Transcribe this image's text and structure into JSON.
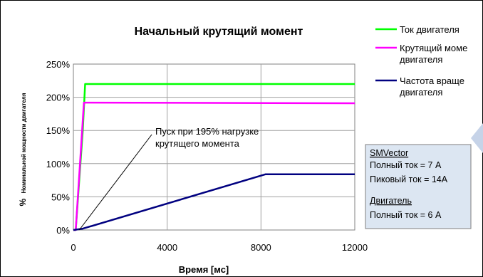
{
  "chart_data": {
    "type": "line",
    "title": "Начальный крутящий момент",
    "xlabel": "Время  [мс]",
    "ylabel_prefix": "%",
    "ylabel_rest": "Номинальной мощности двигателя",
    "xlim": [
      0,
      12000
    ],
    "ylim": [
      0,
      250
    ],
    "x_ticks": [
      0,
      4000,
      8000,
      12000
    ],
    "y_ticks": [
      0,
      50,
      100,
      150,
      200,
      250
    ],
    "x_tick_labels": [
      "0",
      "4000",
      "8000",
      "12000"
    ],
    "y_tick_labels": [
      "0%",
      "50%",
      "100%",
      "150%",
      "200%",
      "250%"
    ],
    "grid": true,
    "legend_position": "right",
    "series": [
      {
        "name": "Ток двигателя",
        "legend_lines": [
          "Ток двигателя"
        ],
        "color": "#00ff00",
        "x": [
          0,
          100,
          400,
          500,
          12000
        ],
        "y": [
          0,
          0,
          150,
          220,
          220
        ]
      },
      {
        "name": "Крутящий момент двигателя",
        "legend_lines": [
          "Крутящий моме",
          "двигателя"
        ],
        "color": "#ff00ff",
        "x": [
          0,
          100,
          450,
          12000
        ],
        "y": [
          0,
          0,
          192,
          191
        ]
      },
      {
        "name": "Частота вращения двигателя",
        "legend_lines": [
          "Частота враще",
          "двигателя"
        ],
        "color": "#000080",
        "x": [
          0,
          400,
          8200,
          12000
        ],
        "y": [
          0,
          2,
          84,
          84
        ]
      }
    ],
    "annotation": {
      "lines": [
        "Пуск при 195% нагрузке",
        "крутящего момента"
      ],
      "points_to_x": 250,
      "points_to_y": 0
    }
  },
  "info_box": {
    "smvector_label": "SMVector",
    "full_current": "Полный ток = 7 А",
    "peak_current": "Пиковый ток = 14А",
    "motor_label": "Двигатель",
    "motor_full_current": "Полный ток = 6 А",
    "background": "#dce6f2"
  }
}
